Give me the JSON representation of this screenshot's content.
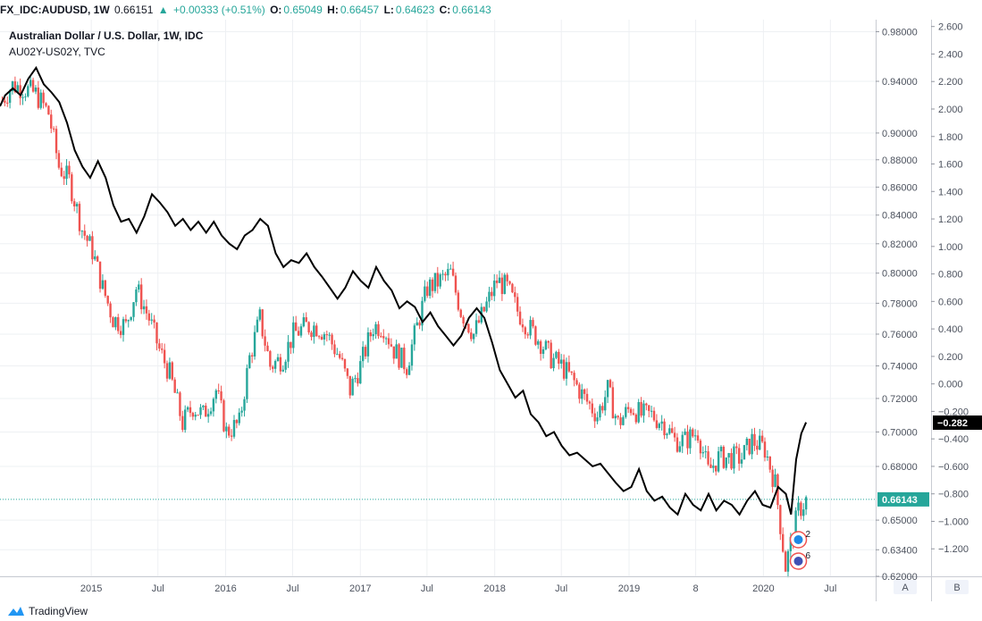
{
  "header": {
    "symbol": "FX_IDC:AUDUSD, 1W",
    "last": "0.66151",
    "change_arrow": "▲",
    "change": "+0.00333 (+0.51%)",
    "o_label": "O:",
    "o_value": "0.65049",
    "h_label": "H:",
    "h_value": "0.66457",
    "l_label": "L:",
    "l_value": "0.64623",
    "c_label": "C:",
    "c_value": "0.66143"
  },
  "chart_data": {
    "type": "candlestick+line",
    "title": "Australian Dollar / U.S. Dollar, 1W, IDC",
    "subtitle": "AU02Y-US02Y, TVC",
    "x_ticks": [
      "2015",
      "Jul",
      "2016",
      "Jul",
      "2017",
      "Jul",
      "2018",
      "Jul",
      "2019",
      "8",
      "2020",
      "Jul"
    ],
    "x_tick_dates": [
      "2015-01-01",
      "2015-07-01",
      "2016-01-01",
      "2016-07-01",
      "2017-01-01",
      "2017-07-01",
      "2018-01-01",
      "2018-07-01",
      "2019-01-01",
      "2019-07-01",
      "2020-01-01",
      "2020-07-01"
    ],
    "x_range": [
      "2014-04-28",
      "2020-11-01"
    ],
    "axes": {
      "audusd": {
        "side": "right",
        "ylim": [
          0.62,
          0.99
        ],
        "scale": "log",
        "ticks": [
          "0.98000",
          "0.94000",
          "0.90000",
          "0.88000",
          "0.86000",
          "0.84000",
          "0.82000",
          "0.80000",
          "0.78000",
          "0.76000",
          "0.74000",
          "0.72000",
          "0.70000",
          "0.68000",
          "0.66143",
          "0.65000",
          "0.63400",
          "0.62000"
        ],
        "last_value": "0.66143"
      },
      "spread": {
        "side": "right",
        "ylim": [
          -1.4,
          2.65
        ],
        "ticks": [
          "2.600",
          "2.400",
          "2.200",
          "2.000",
          "1.800",
          "1.600",
          "1.400",
          "1.200",
          "1.000",
          "0.800",
          "0.600",
          "0.400",
          "0.200",
          "0.000",
          "−0.200",
          "−0.400",
          "−0.600",
          "−0.800",
          "−1.000",
          "−1.200"
        ],
        "last_value": "−0.282"
      }
    },
    "scale_buttons": [
      "A",
      "B"
    ],
    "event_markers": [
      {
        "label": "2",
        "date": "2020-04-05"
      },
      {
        "label": "6",
        "date": "2020-04-05"
      }
    ],
    "series": [
      {
        "name": "AUDUSD",
        "kind": "candles",
        "colors": {
          "up": "#26a69a",
          "down": "#ef5350"
        },
        "close": [
          [
            "2014-05-04",
            0.925
          ],
          [
            "2014-06-01",
            0.937
          ],
          [
            "2014-07-06",
            0.934
          ],
          [
            "2014-08-03",
            0.93
          ],
          [
            "2014-09-07",
            0.915
          ],
          [
            "2014-10-05",
            0.875
          ],
          [
            "2014-11-02",
            0.865
          ],
          [
            "2014-12-07",
            0.83
          ],
          [
            "2015-01-04",
            0.815
          ],
          [
            "2015-02-01",
            0.79
          ],
          [
            "2015-03-01",
            0.77
          ],
          [
            "2015-04-05",
            0.765
          ],
          [
            "2015-05-03",
            0.79
          ],
          [
            "2015-06-07",
            0.77
          ],
          [
            "2015-07-05",
            0.75
          ],
          [
            "2015-08-02",
            0.735
          ],
          [
            "2015-09-06",
            0.705
          ],
          [
            "2015-10-04",
            0.715
          ],
          [
            "2015-11-01",
            0.71
          ],
          [
            "2015-12-06",
            0.725
          ],
          [
            "2016-01-03",
            0.7
          ],
          [
            "2016-02-07",
            0.705
          ],
          [
            "2016-03-06",
            0.745
          ],
          [
            "2016-04-03",
            0.77
          ],
          [
            "2016-05-01",
            0.74
          ],
          [
            "2016-06-05",
            0.745
          ],
          [
            "2016-07-03",
            0.76
          ],
          [
            "2016-08-07",
            0.765
          ],
          [
            "2016-09-04",
            0.765
          ],
          [
            "2016-10-02",
            0.76
          ],
          [
            "2016-11-06",
            0.745
          ],
          [
            "2016-12-04",
            0.725
          ],
          [
            "2017-01-01",
            0.74
          ],
          [
            "2017-02-05",
            0.765
          ],
          [
            "2017-03-05",
            0.765
          ],
          [
            "2017-04-02",
            0.75
          ],
          [
            "2017-05-07",
            0.74
          ],
          [
            "2017-06-04",
            0.765
          ],
          [
            "2017-07-02",
            0.79
          ],
          [
            "2017-08-06",
            0.795
          ],
          [
            "2017-09-03",
            0.8
          ],
          [
            "2017-10-01",
            0.775
          ],
          [
            "2017-11-05",
            0.76
          ],
          [
            "2017-12-03",
            0.775
          ],
          [
            "2018-01-07",
            0.795
          ],
          [
            "2018-02-04",
            0.79
          ],
          [
            "2018-03-04",
            0.775
          ],
          [
            "2018-04-01",
            0.765
          ],
          [
            "2018-05-06",
            0.755
          ],
          [
            "2018-06-03",
            0.745
          ],
          [
            "2018-07-01",
            0.74
          ],
          [
            "2018-08-05",
            0.73
          ],
          [
            "2018-09-02",
            0.72
          ],
          [
            "2018-10-07",
            0.71
          ],
          [
            "2018-11-04",
            0.725
          ],
          [
            "2018-12-02",
            0.705
          ],
          [
            "2019-01-06",
            0.715
          ],
          [
            "2019-02-03",
            0.71
          ],
          [
            "2019-03-03",
            0.71
          ],
          [
            "2019-04-07",
            0.705
          ],
          [
            "2019-05-05",
            0.695
          ],
          [
            "2019-06-02",
            0.695
          ],
          [
            "2019-07-07",
            0.7
          ],
          [
            "2019-08-04",
            0.677
          ],
          [
            "2019-09-01",
            0.685
          ],
          [
            "2019-10-06",
            0.685
          ],
          [
            "2019-11-03",
            0.685
          ],
          [
            "2019-12-01",
            0.695
          ],
          [
            "2020-01-05",
            0.69
          ],
          [
            "2020-02-02",
            0.67
          ],
          [
            "2020-03-01",
            0.625
          ],
          [
            "2020-04-05",
            0.655
          ],
          [
            "2020-04-26",
            0.661
          ]
        ]
      },
      {
        "name": "AU02Y-US02Y",
        "kind": "line",
        "color": "#000000",
        "values": [
          [
            "2014-04-28",
            2.02
          ],
          [
            "2014-05-12",
            2.1
          ],
          [
            "2014-06-02",
            2.15
          ],
          [
            "2014-06-23",
            2.1
          ],
          [
            "2014-07-14",
            2.22
          ],
          [
            "2014-08-04",
            2.3
          ],
          [
            "2014-08-25",
            2.18
          ],
          [
            "2014-09-15",
            2.12
          ],
          [
            "2014-10-06",
            2.05
          ],
          [
            "2014-10-27",
            1.9
          ],
          [
            "2014-11-17",
            1.7
          ],
          [
            "2014-12-08",
            1.58
          ],
          [
            "2014-12-29",
            1.5
          ],
          [
            "2015-01-19",
            1.62
          ],
          [
            "2015-02-09",
            1.5
          ],
          [
            "2015-03-02",
            1.3
          ],
          [
            "2015-03-23",
            1.18
          ],
          [
            "2015-04-13",
            1.2
          ],
          [
            "2015-05-04",
            1.1
          ],
          [
            "2015-05-25",
            1.22
          ],
          [
            "2015-06-15",
            1.38
          ],
          [
            "2015-07-06",
            1.32
          ],
          [
            "2015-07-27",
            1.25
          ],
          [
            "2015-08-17",
            1.15
          ],
          [
            "2015-09-07",
            1.2
          ],
          [
            "2015-09-28",
            1.12
          ],
          [
            "2015-10-19",
            1.18
          ],
          [
            "2015-11-09",
            1.1
          ],
          [
            "2015-11-30",
            1.18
          ],
          [
            "2015-12-21",
            1.08
          ],
          [
            "2016-01-11",
            1.02
          ],
          [
            "2016-02-01",
            0.98
          ],
          [
            "2016-02-22",
            1.08
          ],
          [
            "2016-03-14",
            1.12
          ],
          [
            "2016-04-04",
            1.2
          ],
          [
            "2016-04-25",
            1.15
          ],
          [
            "2016-05-16",
            0.95
          ],
          [
            "2016-06-06",
            0.85
          ],
          [
            "2016-06-27",
            0.9
          ],
          [
            "2016-07-18",
            0.88
          ],
          [
            "2016-08-08",
            0.95
          ],
          [
            "2016-08-29",
            0.85
          ],
          [
            "2016-09-19",
            0.78
          ],
          [
            "2016-10-10",
            0.7
          ],
          [
            "2016-10-31",
            0.62
          ],
          [
            "2016-11-21",
            0.7
          ],
          [
            "2016-12-12",
            0.82
          ],
          [
            "2017-01-02",
            0.75
          ],
          [
            "2017-01-23",
            0.7
          ],
          [
            "2017-02-13",
            0.85
          ],
          [
            "2017-03-06",
            0.75
          ],
          [
            "2017-03-27",
            0.68
          ],
          [
            "2017-04-17",
            0.55
          ],
          [
            "2017-05-08",
            0.6
          ],
          [
            "2017-05-29",
            0.56
          ],
          [
            "2017-06-19",
            0.45
          ],
          [
            "2017-07-10",
            0.52
          ],
          [
            "2017-07-31",
            0.42
          ],
          [
            "2017-08-21",
            0.35
          ],
          [
            "2017-09-11",
            0.28
          ],
          [
            "2017-10-02",
            0.35
          ],
          [
            "2017-10-23",
            0.48
          ],
          [
            "2017-11-13",
            0.55
          ],
          [
            "2017-12-04",
            0.48
          ],
          [
            "2017-12-25",
            0.3
          ],
          [
            "2018-01-15",
            0.1
          ],
          [
            "2018-02-05",
            0.0
          ],
          [
            "2018-02-26",
            -0.1
          ],
          [
            "2018-03-19",
            -0.05
          ],
          [
            "2018-04-09",
            -0.22
          ],
          [
            "2018-04-30",
            -0.28
          ],
          [
            "2018-05-21",
            -0.38
          ],
          [
            "2018-06-11",
            -0.35
          ],
          [
            "2018-07-02",
            -0.45
          ],
          [
            "2018-07-23",
            -0.52
          ],
          [
            "2018-08-13",
            -0.5
          ],
          [
            "2018-09-03",
            -0.55
          ],
          [
            "2018-09-24",
            -0.6
          ],
          [
            "2018-10-15",
            -0.58
          ],
          [
            "2018-11-05",
            -0.65
          ],
          [
            "2018-11-26",
            -0.72
          ],
          [
            "2018-12-17",
            -0.78
          ],
          [
            "2019-01-07",
            -0.75
          ],
          [
            "2019-01-28",
            -0.62
          ],
          [
            "2019-02-18",
            -0.78
          ],
          [
            "2019-03-11",
            -0.85
          ],
          [
            "2019-04-01",
            -0.82
          ],
          [
            "2019-04-22",
            -0.9
          ],
          [
            "2019-05-13",
            -0.95
          ],
          [
            "2019-06-03",
            -0.8
          ],
          [
            "2019-06-24",
            -0.88
          ],
          [
            "2019-07-15",
            -0.92
          ],
          [
            "2019-08-05",
            -0.8
          ],
          [
            "2019-08-26",
            -0.92
          ],
          [
            "2019-09-16",
            -0.85
          ],
          [
            "2019-10-07",
            -0.88
          ],
          [
            "2019-10-28",
            -0.95
          ],
          [
            "2019-11-18",
            -0.85
          ],
          [
            "2019-12-09",
            -0.78
          ],
          [
            "2019-12-30",
            -0.88
          ],
          [
            "2020-01-20",
            -0.9
          ],
          [
            "2020-02-10",
            -0.75
          ],
          [
            "2020-03-02",
            -0.8
          ],
          [
            "2020-03-16",
            -0.95
          ],
          [
            "2020-03-30",
            -0.55
          ],
          [
            "2020-04-13",
            -0.36
          ],
          [
            "2020-04-26",
            -0.28
          ]
        ]
      }
    ]
  },
  "footer": {
    "brand": "TradingView"
  },
  "colors": {
    "up": "#26a69a",
    "down": "#ef5350",
    "line": "#000000",
    "grid": "#eef0f3",
    "axis_text": "#4c525e"
  }
}
